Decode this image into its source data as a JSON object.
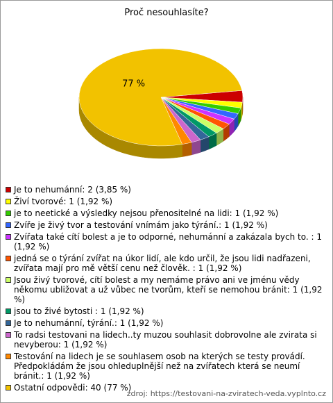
{
  "chart_data": {
    "type": "pie",
    "title": "Proč nesouhlasíte?",
    "categories": [
      "Je to nehumánní: 2 (3,85 %)",
      "Živí tvorové: 1 (1,92 %)",
      "je to neetické a výsledky nejsou přenositelné na lidi: 1 (1,92 %)",
      "Zvíře je živý tvor a testování vnímám jako týrání.: 1 (1,92 %)",
      "Zvířata také cítí bolest a je to odporné, nehumánní a zakázala bych to. : 1 (1,92 %)",
      "jedná se o týrání zvířat na úkor lidí, ale kdo určil, že jsou lidi nadřazeni, zvířata mají pro mě větší cenu než člověk. : 1 (1,92 %)",
      "Jsou živý tvorové, cítí bolest a my nemáme právo ani ve jménu vědy někomu ubližovat a už vůbec ne tvorům, kteří se nemohou bránit: 1 (1,92 %)",
      "jsou to živé bytosti : 1 (1,92 %)",
      "Je to nehumánní, týrání.: 1 (1,92 %)",
      "To radsi testovani na lidech..ty muzou souhlasit dobrovolne ale zvirata si nevyberou: 1 (1,92 %)",
      "Testování na lidech je se souhlasem osob na kterých se testy provádí. Předpokládám že jsou ohleduplnější než na zvířatech která se neumí bránit.: 1 (1,92 %)",
      "Ostatní odpovědi: 40 (77 %)"
    ],
    "values": [
      3.85,
      1.92,
      1.92,
      1.92,
      1.92,
      1.92,
      1.92,
      1.92,
      1.92,
      1.92,
      1.92,
      77
    ],
    "value_labels": [
      null,
      null,
      null,
      null,
      null,
      null,
      null,
      null,
      null,
      null,
      null,
      "77 %"
    ],
    "colors": [
      "#cc0000",
      "#ffff00",
      "#33cc00",
      "#3366ff",
      "#cc33ff",
      "#ff5500",
      "#ccff66",
      "#009966",
      "#336699",
      "#cc66cc",
      "#ff8800",
      "#f2c200"
    ],
    "source": "zdroj: https://testovani-na-zviratech-veda.vyplnto.cz"
  }
}
